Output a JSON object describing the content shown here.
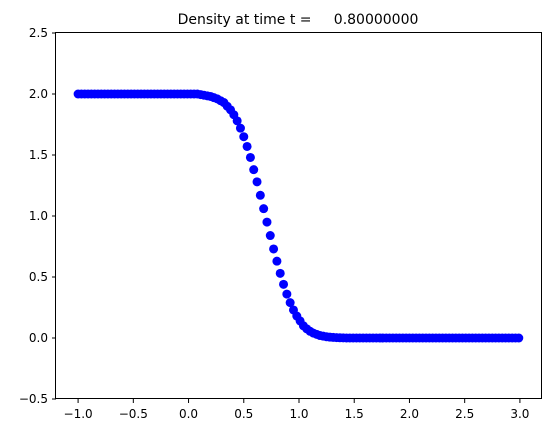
{
  "chart_data": {
    "type": "scatter",
    "title": "Density at time t =     0.80000000",
    "xlabel": "",
    "ylabel": "",
    "xlim": [
      -1.2,
      3.2
    ],
    "ylim": [
      -0.5,
      2.5
    ],
    "xticks": [
      -1.0,
      -0.5,
      0.0,
      0.5,
      1.0,
      1.5,
      2.0,
      2.5,
      3.0
    ],
    "xtick_labels": [
      "−1.0",
      "−0.5",
      "0.0",
      "0.5",
      "1.0",
      "1.5",
      "2.0",
      "2.5",
      "3.0"
    ],
    "yticks": [
      -0.5,
      0.0,
      0.5,
      1.0,
      1.5,
      2.0,
      2.5
    ],
    "ytick_labels": [
      "−0.5",
      "0.0",
      "0.5",
      "1.0",
      "1.5",
      "2.0",
      "2.5"
    ],
    "grid": false,
    "marker_color": "#0000ff",
    "series": [
      {
        "x": [
          -1.0,
          -0.97,
          -0.94,
          -0.91,
          -0.88,
          -0.85,
          -0.82,
          -0.79,
          -0.76,
          -0.73,
          -0.7,
          -0.67,
          -0.64,
          -0.61,
          -0.58,
          -0.55,
          -0.52,
          -0.49,
          -0.46,
          -0.43,
          -0.4,
          -0.37,
          -0.34,
          -0.31,
          -0.28,
          -0.25,
          -0.22,
          -0.19,
          -0.16,
          -0.13,
          -0.1,
          -0.07,
          -0.04,
          -0.01,
          0.02,
          0.05,
          0.08,
          0.11,
          0.14,
          0.17,
          0.2,
          0.23,
          0.26,
          0.29,
          0.32,
          0.35,
          0.38,
          0.41,
          0.44,
          0.47,
          0.5,
          0.53,
          0.56,
          0.59,
          0.62,
          0.65,
          0.68,
          0.71,
          0.74,
          0.77,
          0.8,
          0.83,
          0.86,
          0.89,
          0.92,
          0.95,
          0.98,
          1.01,
          1.04,
          1.07,
          1.1,
          1.13,
          1.16,
          1.19,
          1.22,
          1.25,
          1.28,
          1.31,
          1.34,
          1.37,
          1.4,
          1.43,
          1.46,
          1.49,
          1.52,
          1.55,
          1.58,
          1.61,
          1.64,
          1.67,
          1.7,
          1.73,
          1.76,
          1.79,
          1.82,
          1.85,
          1.88,
          1.91,
          1.94,
          1.97,
          2.0,
          2.03,
          2.06,
          2.09,
          2.12,
          2.15,
          2.18,
          2.21,
          2.24,
          2.27,
          2.3,
          2.33,
          2.36,
          2.39,
          2.42,
          2.45,
          2.48,
          2.51,
          2.54,
          2.57,
          2.6,
          2.63,
          2.66,
          2.69,
          2.72,
          2.75,
          2.78,
          2.81,
          2.84,
          2.87,
          2.9,
          2.93,
          2.96,
          2.99
        ],
        "y": [
          2.0,
          2.0,
          2.0,
          2.0,
          2.0,
          2.0,
          2.0,
          2.0,
          2.0,
          2.0,
          2.0,
          2.0,
          2.0,
          2.0,
          2.0,
          2.0,
          2.0,
          2.0,
          2.0,
          2.0,
          2.0,
          2.0,
          2.0,
          2.0,
          2.0,
          2.0,
          2.0,
          2.0,
          2.0,
          2.0,
          2.0,
          2.0,
          2.0,
          2.0,
          2.0,
          2.0,
          2.0,
          1.995,
          1.99,
          1.985,
          1.98,
          1.97,
          1.96,
          1.945,
          1.93,
          1.9,
          1.87,
          1.83,
          1.78,
          1.72,
          1.65,
          1.57,
          1.48,
          1.38,
          1.28,
          1.17,
          1.06,
          0.95,
          0.84,
          0.73,
          0.63,
          0.53,
          0.44,
          0.36,
          0.29,
          0.23,
          0.18,
          0.14,
          0.1,
          0.075,
          0.055,
          0.04,
          0.03,
          0.02,
          0.015,
          0.01,
          0.007,
          0.005,
          0.003,
          0.002,
          0.001,
          0.0,
          0.0,
          0.0,
          0.0,
          0.0,
          0.0,
          0.0,
          0.0,
          0.0,
          0.0,
          0.0,
          0.0,
          0.0,
          0.0,
          0.0,
          0.0,
          0.0,
          0.0,
          0.0,
          0.0,
          0.0,
          0.0,
          0.0,
          0.0,
          0.0,
          0.0,
          0.0,
          0.0,
          0.0,
          0.0,
          0.0,
          0.0,
          0.0,
          0.0,
          0.0,
          0.0,
          0.0,
          0.0,
          0.0,
          0.0,
          0.0,
          0.0,
          0.0,
          0.0,
          0.0,
          0.0,
          0.0,
          0.0,
          0.0,
          0.0,
          0.0,
          0.0,
          0.0
        ]
      }
    ]
  }
}
